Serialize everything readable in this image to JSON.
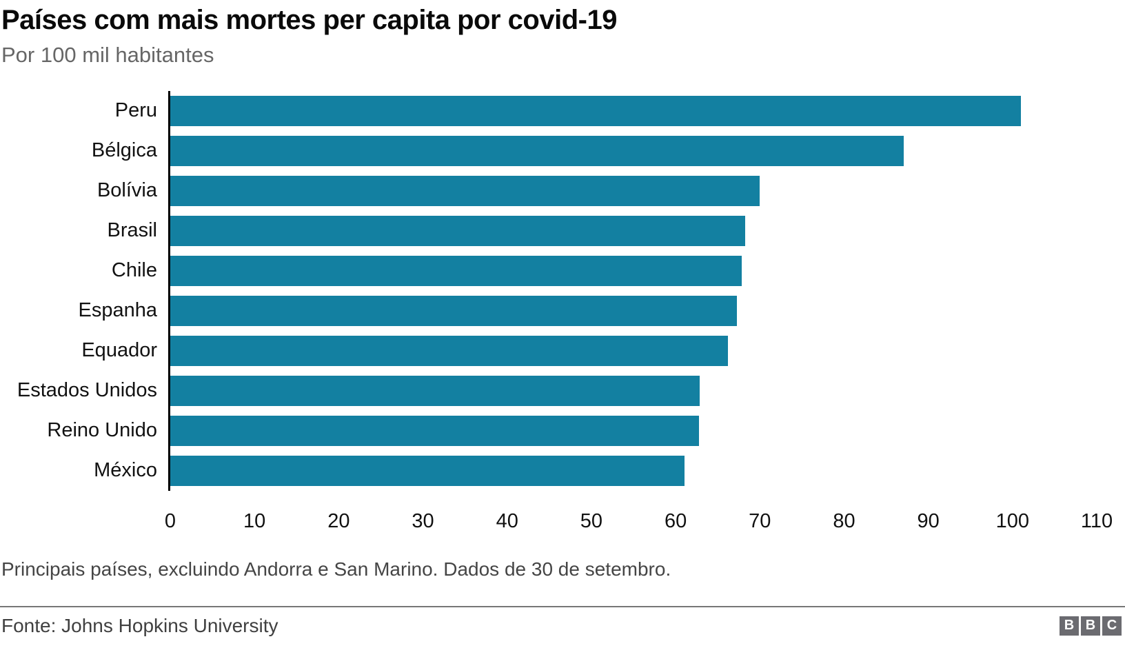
{
  "header": {
    "title": "Países com mais mortes per capita por covid-19",
    "subtitle": "Por 100 mil habitantes"
  },
  "chart_data": {
    "type": "bar",
    "orientation": "horizontal",
    "title": "Países com mais mortes per capita por covid-19",
    "subtitle": "Por 100 mil habitantes",
    "categories": [
      "Peru",
      "Bélgica",
      "Bolívia",
      "Brasil",
      "Chile",
      "Espanha",
      "Equador",
      "Estados Unidos",
      "Reino Unido",
      "México"
    ],
    "values": [
      101.2,
      87.3,
      70.1,
      68.4,
      68.0,
      67.4,
      66.4,
      63.0,
      62.9,
      61.2
    ],
    "xlabel": "",
    "ylabel": "",
    "xlim": [
      0,
      110
    ],
    "xticks": [
      0,
      10,
      20,
      30,
      40,
      50,
      60,
      70,
      80,
      90,
      100,
      110
    ],
    "grid": false,
    "legend": false,
    "bar_color": "#1380A1"
  },
  "footer": {
    "note": "Principais países, excluindo Andorra e San Marino. Dados de 30 de setembro.",
    "source": "Fonte: Johns Hopkins University",
    "logo_letters": [
      "B",
      "B",
      "C"
    ]
  },
  "colors": {
    "bar": "#1380A1",
    "title": "#0a0a0a",
    "subtitle": "#666666",
    "axis_line": "#000000",
    "note": "#454545",
    "source": "#404040",
    "logo_bg": "#6b6b70"
  }
}
